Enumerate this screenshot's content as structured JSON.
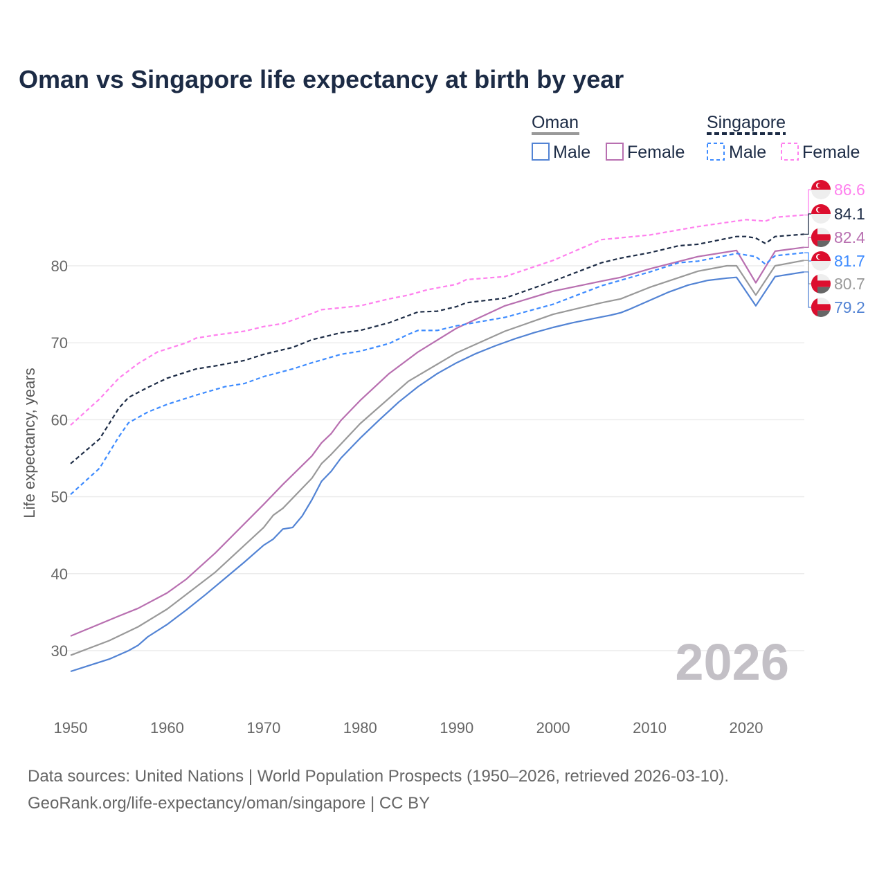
{
  "title": "Oman vs Singapore life expectancy at birth by year",
  "footer": {
    "line1": "Data sources: United Nations | World Population Prospects (1950–2026, retrieved 2026-03-10).",
    "line2": "GeoRank.org/life-expectancy/oman/singapore | CC BY"
  },
  "legend": {
    "oman": "Oman",
    "singapore": "Singapore",
    "male": "Male",
    "female": "Female"
  },
  "year_watermark": "2026",
  "chart_data": {
    "type": "line",
    "title": "Oman vs Singapore life expectancy at birth by year",
    "xlabel": "",
    "ylabel": "Life expectancy, years",
    "xlim": [
      1950,
      2026
    ],
    "ylim": [
      25,
      90
    ],
    "x_ticks": [
      1950,
      1960,
      1970,
      1980,
      1990,
      2000,
      2010,
      2020
    ],
    "y_ticks": [
      30,
      40,
      50,
      60,
      70,
      80
    ],
    "grid": true,
    "legend_position": "top-right",
    "series": [
      {
        "name": "Singapore Female",
        "country": "Singapore",
        "color": "#ff80ee",
        "dash": true,
        "end_label": "86.6",
        "x": [
          1950,
          1953,
          1955,
          1957,
          1959,
          1962,
          1963,
          1965,
          1968,
          1970,
          1972,
          1975,
          1976,
          1980,
          1983,
          1985,
          1987,
          1990,
          1991,
          1995,
          2000,
          2005,
          2010,
          2015,
          2020,
          2022,
          2023,
          2026
        ],
        "y": [
          59.3,
          62.7,
          65.4,
          67.3,
          68.8,
          70.0,
          70.6,
          71.0,
          71.5,
          72.1,
          72.5,
          73.8,
          74.3,
          74.8,
          75.7,
          76.2,
          76.9,
          77.6,
          78.2,
          78.6,
          80.7,
          83.4,
          84.0,
          85.1,
          86.0,
          85.8,
          86.3,
          86.6
        ]
      },
      {
        "name": "Singapore",
        "country": "Singapore",
        "color": "#1c2b45",
        "dash": true,
        "end_label": "84.1",
        "x": [
          1950,
          1953,
          1955,
          1956,
          1958,
          1960,
          1963,
          1965,
          1968,
          1970,
          1973,
          1975,
          1978,
          1980,
          1983,
          1986,
          1988,
          1990,
          1991,
          1995,
          2000,
          2005,
          2007,
          2010,
          2013,
          2015,
          2019,
          2020,
          2021,
          2022,
          2023,
          2026
        ],
        "y": [
          54.3,
          57.5,
          61.5,
          62.9,
          64.2,
          65.4,
          66.6,
          67.0,
          67.7,
          68.5,
          69.4,
          70.4,
          71.3,
          71.6,
          72.6,
          74.0,
          74.1,
          74.7,
          75.2,
          75.8,
          78.0,
          80.4,
          81.0,
          81.7,
          82.6,
          82.8,
          83.8,
          83.8,
          83.6,
          82.9,
          83.8,
          84.1
        ]
      },
      {
        "name": "Oman Female",
        "country": "Oman",
        "color": "#b86fb0",
        "dash": false,
        "end_label": "82.4",
        "x": [
          1950,
          1955,
          1957,
          1960,
          1962,
          1965,
          1970,
          1972,
          1975,
          1976,
          1977,
          1978,
          1980,
          1983,
          1986,
          1990,
          1995,
          2000,
          2005,
          2007,
          2010,
          2015,
          2019,
          2021,
          2023,
          2026
        ],
        "y": [
          31.9,
          34.5,
          35.5,
          37.5,
          39.3,
          42.7,
          49.0,
          51.6,
          55.3,
          57.0,
          58.2,
          59.9,
          62.5,
          66.0,
          68.8,
          71.9,
          74.8,
          76.7,
          78.0,
          78.5,
          79.6,
          81.2,
          82.0,
          77.8,
          81.9,
          82.4
        ]
      },
      {
        "name": "Singapore Male",
        "country": "Singapore",
        "color": "#3d8bff",
        "dash": true,
        "end_label": "81.7",
        "x": [
          1950,
          1953,
          1955,
          1956,
          1958,
          1960,
          1963,
          1966,
          1968,
          1970,
          1973,
          1975,
          1978,
          1980,
          1983,
          1985,
          1986,
          1988,
          1990,
          1995,
          2000,
          2005,
          2010,
          2013,
          2015,
          2019,
          2021,
          2022,
          2023,
          2026
        ],
        "y": [
          50.3,
          53.7,
          57.8,
          59.6,
          61.0,
          62.0,
          63.2,
          64.3,
          64.7,
          65.6,
          66.6,
          67.4,
          68.5,
          68.9,
          69.9,
          71.1,
          71.6,
          71.6,
          72.2,
          73.3,
          75.0,
          77.4,
          79.2,
          80.4,
          80.6,
          81.6,
          81.2,
          80.2,
          81.3,
          81.7
        ]
      },
      {
        "name": "Oman",
        "country": "Oman",
        "color": "#999999",
        "dash": false,
        "end_label": "80.7",
        "x": [
          1950,
          1954,
          1957,
          1960,
          1965,
          1970,
          1971,
          1972,
          1975,
          1976,
          1977,
          1980,
          1985,
          1990,
          1995,
          2000,
          2005,
          2007,
          2010,
          2015,
          2018,
          2019,
          2021,
          2023,
          2026
        ],
        "y": [
          29.4,
          31.3,
          33.1,
          35.4,
          40.2,
          46.0,
          47.6,
          48.5,
          52.4,
          54.3,
          55.5,
          59.5,
          65.0,
          68.7,
          71.5,
          73.7,
          75.2,
          75.7,
          77.2,
          79.3,
          80.0,
          80.0,
          76.2,
          80.0,
          80.7
        ]
      },
      {
        "name": "Oman Male",
        "country": "Oman",
        "color": "#5283d4",
        "dash": false,
        "end_label": "79.2",
        "x": [
          1950,
          1952,
          1954,
          1956,
          1957,
          1958,
          1960,
          1962,
          1964,
          1966,
          1968,
          1970,
          1971,
          1972,
          1973,
          1974,
          1975,
          1976,
          1977,
          1978,
          1980,
          1982,
          1984,
          1986,
          1988,
          1990,
          1992,
          1994,
          1996,
          1998,
          2000,
          2002,
          2004,
          2006,
          2007,
          2008,
          2010,
          2012,
          2014,
          2016,
          2018,
          2019,
          2021,
          2023,
          2026
        ],
        "y": [
          27.3,
          28.1,
          28.9,
          30.0,
          30.7,
          31.8,
          33.4,
          35.3,
          37.3,
          39.4,
          41.5,
          43.7,
          44.5,
          45.8,
          46.0,
          47.5,
          49.6,
          52.0,
          53.3,
          55.0,
          57.6,
          60.0,
          62.3,
          64.3,
          66.0,
          67.4,
          68.6,
          69.6,
          70.5,
          71.3,
          72.0,
          72.6,
          73.1,
          73.6,
          73.9,
          74.4,
          75.5,
          76.6,
          77.5,
          78.1,
          78.4,
          78.5,
          74.8,
          78.6,
          79.2
        ]
      }
    ]
  }
}
